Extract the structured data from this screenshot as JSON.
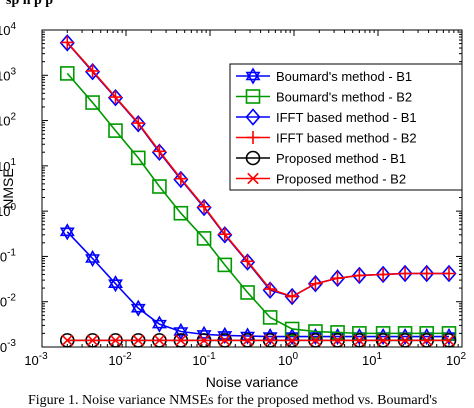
{
  "header_fragment": "sp n p p",
  "caption": "Figure 1.  Noise variance NMSEs for the proposed method vs. Boumard's",
  "chart_data": {
    "type": "line",
    "title": "",
    "xlabel": "Noise variance",
    "ylabel": "NMSE",
    "xscale": "log",
    "yscale": "log",
    "xlim": [
      0.001,
      100
    ],
    "ylim": [
      0.001,
      10000
    ],
    "grid": false,
    "legend_position": "top-right",
    "x_tick_labels": [
      "10^-3",
      "10^-2",
      "10^-1",
      "10^0",
      "10^1",
      "10^2"
    ],
    "y_tick_labels": [
      "10^-3",
      "10^-2",
      "10^-1",
      "10^0",
      "10^1",
      "10^2",
      "10^3",
      "10^4"
    ],
    "x": [
      0.002,
      0.004,
      0.0075,
      0.014,
      0.025,
      0.045,
      0.085,
      0.15,
      0.28,
      0.52,
      0.95,
      1.8,
      3.3,
      6.0,
      11.5,
      21,
      38,
      70
    ],
    "series": [
      {
        "name": "Boumard's  method - B1",
        "color": "#0000ff",
        "marker": "hexagram",
        "values": [
          0.35,
          0.09,
          0.025,
          0.0072,
          0.0032,
          0.0022,
          0.0019,
          0.0018,
          0.00175,
          0.0017,
          0.0017,
          0.0017,
          0.0017,
          0.0017,
          0.0017,
          0.0017,
          0.0017,
          0.0017
        ]
      },
      {
        "name": "Boumard's  method - B2",
        "color": "#009900",
        "marker": "square",
        "values": [
          1100,
          250,
          60,
          15,
          3.5,
          0.9,
          0.25,
          0.065,
          0.016,
          0.0045,
          0.0025,
          0.0022,
          0.0021,
          0.002,
          0.002,
          0.002,
          0.002,
          0.002
        ]
      },
      {
        "name": "IFFT based method - B1",
        "color": "#0000ff",
        "marker": "diamond",
        "values": [
          5200,
          1200,
          320,
          85,
          20,
          5,
          1.2,
          0.3,
          0.075,
          0.018,
          0.013,
          0.025,
          0.033,
          0.038,
          0.04,
          0.042,
          0.042,
          0.042
        ]
      },
      {
        "name": "IFFT based method - B2",
        "color": "#ff0000",
        "marker": "plus",
        "values": [
          5300,
          1250,
          330,
          88,
          21,
          5.2,
          1.25,
          0.31,
          0.078,
          0.019,
          0.013,
          0.025,
          0.033,
          0.038,
          0.04,
          0.042,
          0.042,
          0.042
        ]
      },
      {
        "name": "Proposed   method - B1",
        "color": "#000000",
        "marker": "circle",
        "values": [
          0.0014,
          0.0014,
          0.0014,
          0.0014,
          0.0014,
          0.0014,
          0.0014,
          0.0014,
          0.0014,
          0.0014,
          0.0014,
          0.0014,
          0.0014,
          0.0014,
          0.0014,
          0.0014,
          0.0014,
          0.0014
        ]
      },
      {
        "name": "Proposed   method - B2",
        "color": "#ff0000",
        "marker": "x",
        "values": [
          0.0014,
          0.0014,
          0.0014,
          0.0014,
          0.0014,
          0.0014,
          0.0014,
          0.0014,
          0.0014,
          0.0014,
          0.0014,
          0.0014,
          0.0014,
          0.0014,
          0.0014,
          0.0014,
          0.0014,
          0.0014
        ]
      }
    ]
  }
}
